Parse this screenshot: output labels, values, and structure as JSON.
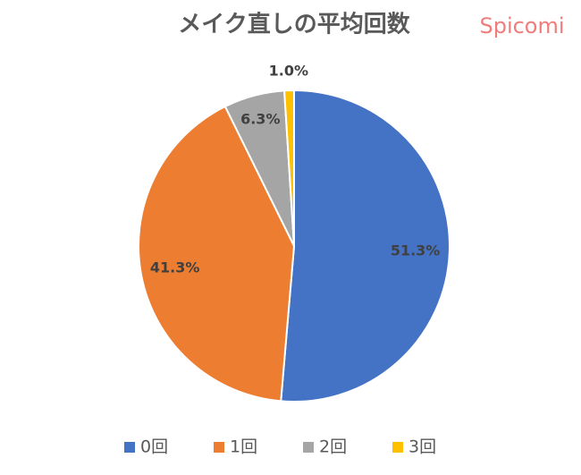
{
  "chart_data": {
    "type": "pie",
    "title": "メイク直しの平均回数",
    "watermark": "Spicomi",
    "categories": [
      "0回",
      "1回",
      "2回",
      "3回"
    ],
    "values": [
      51.3,
      41.3,
      6.3,
      1.0
    ],
    "value_labels": [
      "51.3%",
      "41.3%",
      "6.3%",
      "1.0%"
    ],
    "colors": [
      "#4472c4",
      "#ed7d31",
      "#a5a5a5",
      "#ffc000"
    ],
    "legend": "bottom"
  }
}
